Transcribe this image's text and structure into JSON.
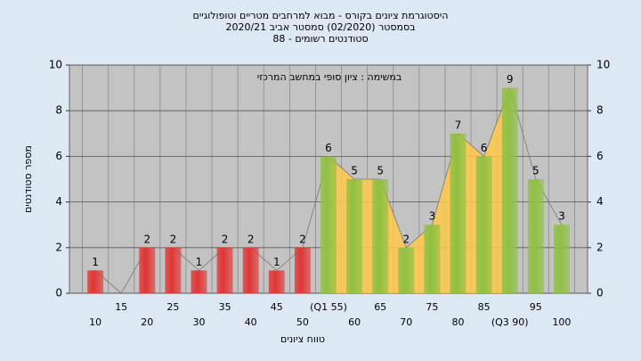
{
  "chart_data": {
    "type": "bar",
    "title": [
      "היסטוגרמת ציונים בקורס - מבוא למרחבים מטריים וטופולוגיים",
      "בסמסטר  (02/2020)  סמסטר אביב 2020/21",
      "סטודנטים רשומים - 88"
    ],
    "subtitle": "במשימה : ציון סופי במחשב המרכזי",
    "y_label": "מספר סטודנטים",
    "x_label": "טווח ציונים",
    "categories": [
      "10",
      "15",
      "20",
      "25",
      "30",
      "35",
      "40",
      "45",
      "50",
      "(Q1 55)",
      "60",
      "65",
      "70",
      "75",
      "80",
      "85",
      "(Q3 90)",
      "95",
      "100"
    ],
    "values": [
      1,
      0,
      2,
      2,
      1,
      2,
      2,
      1,
      2,
      6,
      5,
      5,
      2,
      3,
      7,
      6,
      9,
      5,
      3
    ],
    "bar_colors": [
      "#e03535",
      "#e03535",
      "#e03535",
      "#e03535",
      "#e03535",
      "#e03535",
      "#e03535",
      "#e03535",
      "#e03535",
      "#8fc043",
      "#8fc043",
      "#8fc043",
      "#8fc043",
      "#8fc043",
      "#8fc043",
      "#8fc043",
      "#8fc043",
      "#8fc043",
      "#8fc043"
    ],
    "area_color": "#ffc94a",
    "ylim": [
      0,
      10
    ],
    "yticks": [
      0,
      2,
      4,
      6,
      8,
      10
    ],
    "grid": true
  }
}
